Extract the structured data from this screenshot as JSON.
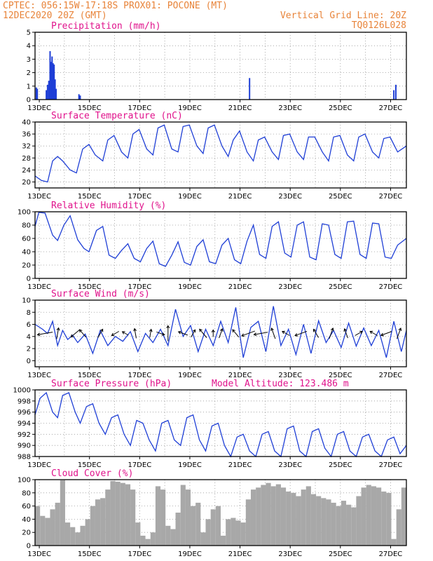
{
  "header": {
    "line1_left": "CPTEC:   056:15W-17:18S   PROX01: POCONE (MT)",
    "line2_left": "12DEC2020 20Z (GMT)",
    "line2_right": "Vertical Grid Line: 20Z",
    "line3_right": "TQ0126L028"
  },
  "colors": {
    "header": "#e8843a",
    "title": "#e0138c",
    "line": "#1f3fd6",
    "cloud": "#a8a8a8"
  },
  "x_ticks": [
    "13DEC",
    "15DEC",
    "17DEC",
    "19DEC",
    "21DEC",
    "23DEC",
    "25DEC",
    "27DEC"
  ],
  "chart_data": [
    {
      "type": "bar",
      "title": "Precipitation (mm/h)",
      "ylim": [
        0,
        5
      ],
      "yticks": [
        "0",
        "1",
        "2",
        "3",
        "4",
        "5"
      ],
      "x_unit": "days since 12DEC 20Z",
      "bars": [
        {
          "x": 0.05,
          "y": 0.9
        },
        {
          "x": 0.09,
          "y": 0.8
        },
        {
          "x": 0.45,
          "y": 0.7
        },
        {
          "x": 0.5,
          "y": 1.1
        },
        {
          "x": 0.55,
          "y": 1.4
        },
        {
          "x": 0.6,
          "y": 3.6
        },
        {
          "x": 0.64,
          "y": 2.8
        },
        {
          "x": 0.68,
          "y": 3.2
        },
        {
          "x": 0.72,
          "y": 2.7
        },
        {
          "x": 0.76,
          "y": 2.6
        },
        {
          "x": 0.8,
          "y": 1.5
        },
        {
          "x": 0.84,
          "y": 0.8
        },
        {
          "x": 1.75,
          "y": 0.4
        },
        {
          "x": 1.8,
          "y": 0.3
        },
        {
          "x": 8.55,
          "y": 1.6
        },
        {
          "x": 14.3,
          "y": 0.7
        },
        {
          "x": 14.38,
          "y": 1.1
        }
      ]
    },
    {
      "type": "line",
      "title": "Surface Temperature (nC)",
      "ylim": [
        18,
        40
      ],
      "yticks": [
        "20",
        "24",
        "28",
        "32",
        "36",
        "40"
      ],
      "x": [
        0,
        0.25,
        0.5,
        0.7,
        0.9,
        1.1,
        1.4,
        1.65,
        1.9,
        2.15,
        2.4,
        2.7,
        2.9,
        3.15,
        3.45,
        3.7,
        3.9,
        4.15,
        4.45,
        4.7,
        4.9,
        5.15,
        5.45,
        5.7,
        5.9,
        6.15,
        6.45,
        6.7,
        6.9,
        7.15,
        7.45,
        7.7,
        7.9,
        8.15,
        8.45,
        8.7,
        8.9,
        9.15,
        9.45,
        9.7,
        9.9,
        10.15,
        10.45,
        10.7,
        10.9,
        11.15,
        11.45,
        11.7,
        11.9,
        12.15,
        12.45,
        12.7,
        12.9,
        13.15,
        13.45,
        13.7,
        13.9,
        14.15,
        14.45,
        14.8
      ],
      "y": [
        22,
        20.5,
        20,
        27,
        28.5,
        27,
        24,
        23,
        31,
        32.5,
        29,
        27,
        34,
        35.5,
        30,
        28,
        36,
        37.5,
        31,
        29,
        38,
        39,
        31,
        30,
        38.5,
        39,
        32,
        29.5,
        38,
        39,
        32,
        28.5,
        34,
        37,
        30,
        27,
        34,
        35,
        30,
        27.5,
        35.5,
        36,
        30,
        27.5,
        35,
        35,
        30,
        27,
        35,
        35.5,
        29,
        27,
        35,
        36,
        30,
        28,
        34.5,
        35,
        30,
        32
      ]
    },
    {
      "type": "line",
      "title": "Relative Humidity (%)",
      "ylim": [
        0,
        100
      ],
      "yticks": [
        "0",
        "20",
        "40",
        "60",
        "80",
        "100"
      ],
      "x": [
        0,
        0.15,
        0.4,
        0.7,
        0.9,
        1.15,
        1.4,
        1.7,
        1.95,
        2.15,
        2.45,
        2.7,
        2.95,
        3.2,
        3.45,
        3.7,
        3.95,
        4.2,
        4.45,
        4.7,
        4.95,
        5.2,
        5.45,
        5.7,
        5.95,
        6.2,
        6.45,
        6.7,
        6.95,
        7.2,
        7.45,
        7.7,
        7.95,
        8.2,
        8.45,
        8.7,
        8.95,
        9.2,
        9.45,
        9.7,
        9.95,
        10.2,
        10.45,
        10.7,
        10.95,
        11.2,
        11.45,
        11.7,
        11.95,
        12.2,
        12.45,
        12.7,
        12.95,
        13.2,
        13.45,
        13.7,
        13.95,
        14.2,
        14.45,
        14.8
      ],
      "y": [
        78,
        99,
        98,
        65,
        57,
        80,
        94,
        58,
        45,
        40,
        72,
        78,
        35,
        30,
        42,
        52,
        30,
        25,
        45,
        56,
        22,
        18,
        35,
        55,
        24,
        20,
        48,
        58,
        25,
        22,
        50,
        60,
        28,
        22,
        56,
        80,
        36,
        30,
        78,
        85,
        38,
        32,
        80,
        85,
        32,
        28,
        82,
        80,
        36,
        30,
        85,
        86,
        36,
        30,
        83,
        82,
        32,
        30,
        50,
        60
      ]
    },
    {
      "type": "line",
      "title": "Surface Wind (m/s)",
      "ylim": [
        -1,
        10
      ],
      "yticks": [
        "0",
        "2",
        "4",
        "6",
        "8",
        "10"
      ],
      "x": [
        0,
        0.3,
        0.5,
        0.7,
        0.9,
        1.1,
        1.3,
        1.5,
        1.7,
        2.0,
        2.3,
        2.6,
        2.9,
        3.2,
        3.5,
        3.8,
        4.1,
        4.4,
        4.7,
        5.0,
        5.3,
        5.6,
        5.9,
        6.2,
        6.5,
        6.8,
        7.1,
        7.4,
        7.7,
        8.0,
        8.3,
        8.6,
        8.9,
        9.2,
        9.5,
        9.8,
        10.1,
        10.4,
        10.7,
        11.0,
        11.3,
        11.6,
        11.9,
        12.2,
        12.5,
        12.8,
        13.1,
        13.4,
        13.7,
        14.0,
        14.3,
        14.6,
        14.8
      ],
      "y": [
        6,
        5.2,
        4.5,
        6.5,
        2.5,
        5,
        3.5,
        4.2,
        3,
        4.4,
        1.2,
        5,
        2.5,
        4,
        3.2,
        4.8,
        1.5,
        4.5,
        3,
        5.2,
        2.5,
        8.5,
        4,
        5.8,
        1.5,
        5.2,
        2.5,
        6.5,
        3,
        8.8,
        0.5,
        5.5,
        6.5,
        1.5,
        9,
        2.5,
        5.2,
        1,
        6,
        1.2,
        6.6,
        3,
        5,
        2.2,
        6.2,
        2.4,
        5.4,
        2.5,
        5,
        0.5,
        6.5,
        1.5,
        5
      ]
    },
    {
      "type": "line",
      "title": "Surface Pressure (hPa)",
      "annotation": "Model Altitude: 123.486  m",
      "ylim": [
        988,
        1000
      ],
      "yticks": [
        "988",
        "990",
        "992",
        "994",
        "996",
        "998",
        "1000"
      ],
      "x": [
        0,
        0.2,
        0.45,
        0.7,
        0.9,
        1.1,
        1.35,
        1.6,
        1.8,
        2.05,
        2.3,
        2.55,
        2.8,
        3.05,
        3.3,
        3.55,
        3.8,
        4.05,
        4.3,
        4.55,
        4.8,
        5.05,
        5.3,
        5.55,
        5.8,
        6.05,
        6.3,
        6.55,
        6.8,
        7.05,
        7.3,
        7.55,
        7.8,
        8.05,
        8.3,
        8.55,
        8.8,
        9.05,
        9.3,
        9.55,
        9.8,
        10.05,
        10.3,
        10.55,
        10.8,
        11.05,
        11.3,
        11.55,
        11.8,
        12.05,
        12.3,
        12.55,
        12.8,
        13.05,
        13.3,
        13.55,
        13.8,
        14.05,
        14.3,
        14.55,
        14.8
      ],
      "y": [
        995.5,
        998.5,
        999.5,
        996,
        995,
        999,
        999.5,
        996,
        994,
        997,
        997.5,
        994,
        992,
        995,
        995.5,
        992,
        990,
        994.5,
        994,
        991,
        989,
        994,
        994.5,
        991,
        990,
        995,
        995.5,
        991,
        989,
        993.5,
        994,
        990,
        988,
        991.5,
        992,
        989,
        988,
        992,
        992.5,
        989,
        988,
        993,
        993.5,
        989,
        988,
        992.5,
        993,
        989.5,
        988,
        992,
        992.5,
        989,
        988,
        991.5,
        992,
        989,
        988,
        991,
        991.5,
        988.5,
        990
      ]
    },
    {
      "type": "area",
      "title": "Cloud Cover (%)",
      "ylim": [
        0,
        100
      ],
      "yticks": [
        "0",
        "20",
        "40",
        "60",
        "80",
        "100"
      ],
      "x": [
        0,
        0.2,
        0.4,
        0.6,
        0.8,
        1.0,
        1.2,
        1.4,
        1.6,
        1.8,
        2.0,
        2.2,
        2.4,
        2.6,
        2.8,
        3.0,
        3.2,
        3.4,
        3.6,
        3.8,
        4.0,
        4.2,
        4.4,
        4.6,
        4.8,
        5.0,
        5.2,
        5.4,
        5.6,
        5.8,
        6.0,
        6.2,
        6.4,
        6.6,
        6.8,
        7.0,
        7.2,
        7.4,
        7.6,
        7.8,
        8.0,
        8.2,
        8.4,
        8.6,
        8.8,
        9.0,
        9.2,
        9.4,
        9.6,
        9.8,
        10.0,
        10.2,
        10.4,
        10.6,
        10.8,
        11.0,
        11.2,
        11.4,
        11.6,
        11.8,
        12.0,
        12.2,
        12.4,
        12.6,
        12.8,
        13.0,
        13.2,
        13.4,
        13.6,
        13.8,
        14.0,
        14.2,
        14.4,
        14.6,
        14.8
      ],
      "y": [
        60,
        45,
        42,
        55,
        65,
        99,
        35,
        28,
        20,
        30,
        40,
        60,
        70,
        72,
        85,
        98,
        97,
        95,
        93,
        85,
        35,
        15,
        10,
        20,
        90,
        85,
        30,
        25,
        50,
        92,
        85,
        60,
        65,
        20,
        40,
        55,
        60,
        15,
        40,
        42,
        38,
        35,
        70,
        85,
        88,
        92,
        95,
        90,
        93,
        88,
        82,
        80,
        75,
        85,
        90,
        78,
        75,
        72,
        70,
        65,
        60,
        68,
        62,
        58,
        75,
        88,
        92,
        90,
        88,
        82,
        80,
        10,
        55,
        88,
        98
      ]
    }
  ],
  "wind_arrows": [
    {
      "x": 0.4,
      "dir": 170,
      "len": 22
    },
    {
      "x": 0.9,
      "dir": -80,
      "len": 16
    },
    {
      "x": 1.6,
      "dir": 140,
      "len": 16
    },
    {
      "x": 1.9,
      "dir": -130,
      "len": 14
    },
    {
      "x": 2.6,
      "dir": -60,
      "len": 14
    },
    {
      "x": 3.2,
      "dir": 150,
      "len": 12
    },
    {
      "x": 3.6,
      "dir": -150,
      "len": 10
    },
    {
      "x": 4.0,
      "dir": -100,
      "len": 14
    },
    {
      "x": 4.6,
      "dir": -80,
      "len": 12
    },
    {
      "x": 5.0,
      "dir": 20,
      "len": 12
    },
    {
      "x": 5.3,
      "dir": -90,
      "len": 22
    },
    {
      "x": 5.9,
      "dir": -160,
      "len": 14
    },
    {
      "x": 6.3,
      "dir": -60,
      "len": 12
    },
    {
      "x": 6.7,
      "dir": -130,
      "len": 16
    },
    {
      "x": 7.1,
      "dir": -90,
      "len": 10
    },
    {
      "x": 7.4,
      "dir": -70,
      "len": 14
    },
    {
      "x": 8.0,
      "dir": -130,
      "len": 14
    },
    {
      "x": 8.5,
      "dir": 160,
      "len": 20
    },
    {
      "x": 9.0,
      "dir": 170,
      "len": 20
    },
    {
      "x": 9.5,
      "dir": -110,
      "len": 16
    },
    {
      "x": 10.0,
      "dir": -150,
      "len": 12
    },
    {
      "x": 10.6,
      "dir": 160,
      "len": 18
    },
    {
      "x": 11.2,
      "dir": -120,
      "len": 14
    },
    {
      "x": 11.8,
      "dir": -70,
      "len": 16
    },
    {
      "x": 12.4,
      "dir": -110,
      "len": 14
    },
    {
      "x": 12.9,
      "dir": -30,
      "len": 12
    },
    {
      "x": 13.5,
      "dir": -150,
      "len": 12
    },
    {
      "x": 14.0,
      "dir": 160,
      "len": 16
    },
    {
      "x": 14.5,
      "dir": -70,
      "len": 16
    }
  ]
}
